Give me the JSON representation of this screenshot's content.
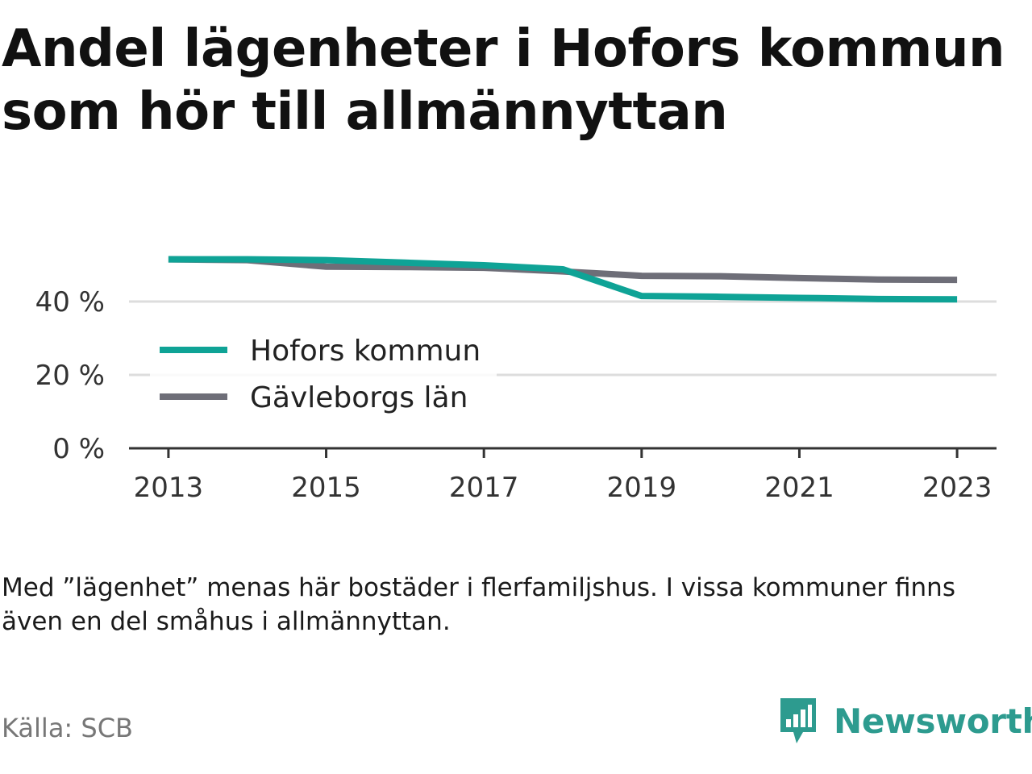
{
  "title_line1": "Andel lägenheter i Hofors kommun",
  "title_line2": "som hör till allmännyttan",
  "note": "Med ”lägenhet” menas här bostäder i flerfamiljshus. I vissa kommuner finns även en del småhus i allmännyttan.",
  "source": "Källa: SCB",
  "brand": {
    "name": "Newsworthy",
    "icon": "newsworthy-logo-icon"
  },
  "colors": {
    "hofors": "#0fa396",
    "gavleborg": "#6e6e78",
    "grid": "#dddddd",
    "axis": "#333333",
    "brand": "#2d9b8f"
  },
  "chart_data": {
    "type": "line",
    "x": [
      2013,
      2014,
      2015,
      2016,
      2017,
      2018,
      2019,
      2020,
      2021,
      2022,
      2023
    ],
    "series": [
      {
        "name": "Hofors kommun",
        "values": [
          51.5,
          51.5,
          51.3,
          50.6,
          49.9,
          48.8,
          41.5,
          41.3,
          41.0,
          40.7,
          40.6
        ]
      },
      {
        "name": "Gävleborgs län",
        "values": [
          51.5,
          51.3,
          49.5,
          49.4,
          49.2,
          48.2,
          47.0,
          46.9,
          46.4,
          46.0,
          45.9
        ]
      }
    ],
    "xticks": [
      2013,
      2015,
      2017,
      2019,
      2021,
      2023
    ],
    "xtick_labels": [
      "2013",
      "2015",
      "2017",
      "2019",
      "2021",
      "2023"
    ],
    "yticks": [
      0,
      20,
      40
    ],
    "ytick_labels": [
      "0 %",
      "20 %",
      "40 %"
    ],
    "ylim": [
      0,
      60
    ],
    "xlim": [
      2012.5,
      2023.5
    ],
    "grid": true,
    "legend_position": "left-middle"
  }
}
